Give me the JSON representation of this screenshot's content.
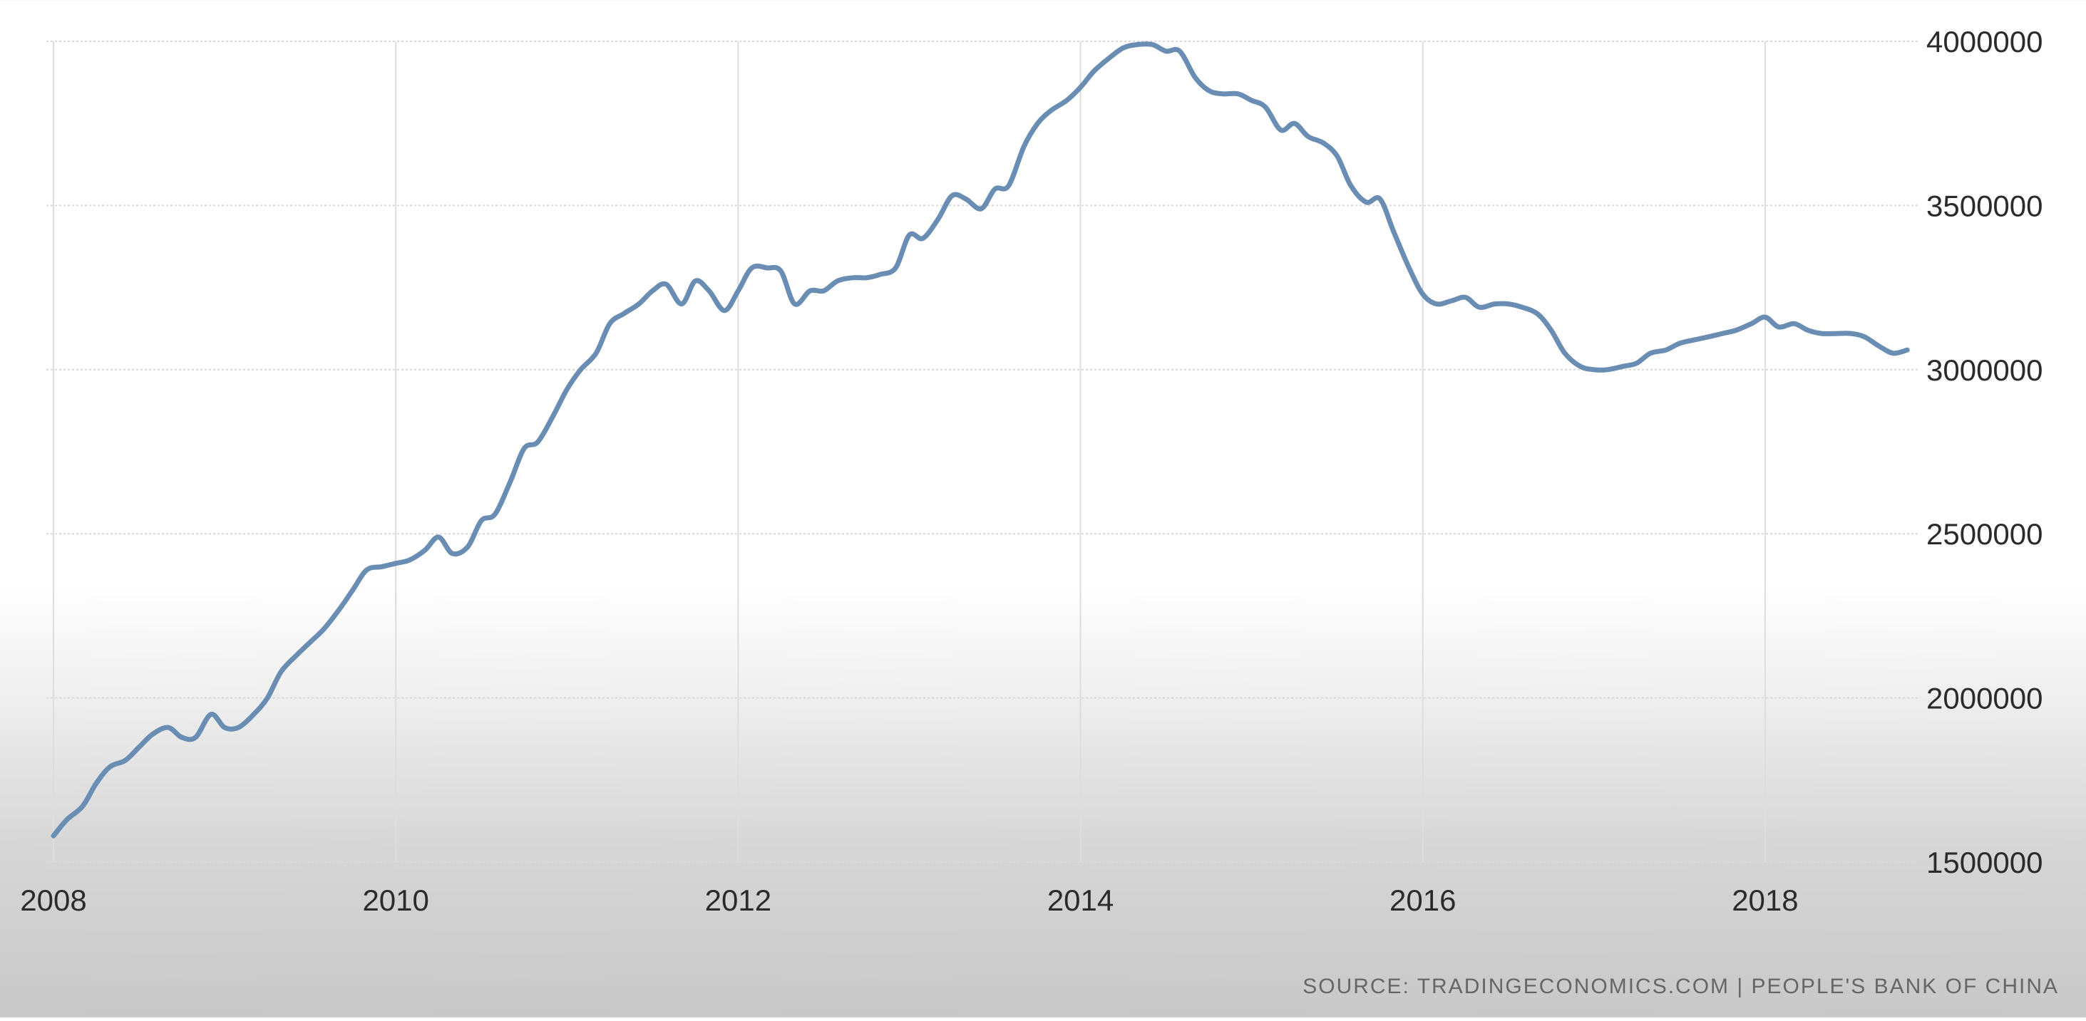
{
  "chart_data": {
    "type": "line",
    "title": "",
    "xlabel": "",
    "ylabel": "",
    "xlim": [
      2008,
      2018.85
    ],
    "ylim": [
      1500000,
      4000000
    ],
    "grid": true,
    "x_ticks": [
      2008,
      2010,
      2012,
      2014,
      2016,
      2018
    ],
    "x_tick_labels": [
      "2008",
      "2010",
      "2012",
      "2014",
      "2016",
      "2018"
    ],
    "y_ticks": [
      1500000,
      2000000,
      2500000,
      3000000,
      3500000,
      4000000
    ],
    "y_tick_labels": [
      "1500000",
      "2000000",
      "2500000",
      "3000000",
      "3500000",
      "4000000"
    ],
    "series": [
      {
        "color": "#6a8db4",
        "points": [
          [
            2008.0,
            1580000
          ],
          [
            2008.08,
            1630000
          ],
          [
            2008.17,
            1670000
          ],
          [
            2008.25,
            1740000
          ],
          [
            2008.33,
            1790000
          ],
          [
            2008.42,
            1810000
          ],
          [
            2008.5,
            1850000
          ],
          [
            2008.58,
            1890000
          ],
          [
            2008.67,
            1910000
          ],
          [
            2008.75,
            1880000
          ],
          [
            2008.83,
            1880000
          ],
          [
            2008.92,
            1950000
          ],
          [
            2009.0,
            1910000
          ],
          [
            2009.08,
            1910000
          ],
          [
            2009.17,
            1950000
          ],
          [
            2009.25,
            2000000
          ],
          [
            2009.33,
            2080000
          ],
          [
            2009.42,
            2130000
          ],
          [
            2009.5,
            2170000
          ],
          [
            2009.58,
            2210000
          ],
          [
            2009.67,
            2270000
          ],
          [
            2009.75,
            2330000
          ],
          [
            2009.83,
            2390000
          ],
          [
            2009.92,
            2400000
          ],
          [
            2010.0,
            2410000
          ],
          [
            2010.08,
            2420000
          ],
          [
            2010.17,
            2450000
          ],
          [
            2010.25,
            2490000
          ],
          [
            2010.33,
            2440000
          ],
          [
            2010.42,
            2460000
          ],
          [
            2010.5,
            2540000
          ],
          [
            2010.58,
            2560000
          ],
          [
            2010.67,
            2660000
          ],
          [
            2010.75,
            2760000
          ],
          [
            2010.83,
            2780000
          ],
          [
            2010.92,
            2860000
          ],
          [
            2011.0,
            2940000
          ],
          [
            2011.08,
            3000000
          ],
          [
            2011.17,
            3050000
          ],
          [
            2011.25,
            3140000
          ],
          [
            2011.33,
            3170000
          ],
          [
            2011.42,
            3200000
          ],
          [
            2011.5,
            3240000
          ],
          [
            2011.58,
            3260000
          ],
          [
            2011.67,
            3200000
          ],
          [
            2011.75,
            3270000
          ],
          [
            2011.83,
            3240000
          ],
          [
            2011.92,
            3180000
          ],
          [
            2012.0,
            3240000
          ],
          [
            2012.08,
            3310000
          ],
          [
            2012.17,
            3310000
          ],
          [
            2012.25,
            3300000
          ],
          [
            2012.33,
            3200000
          ],
          [
            2012.42,
            3240000
          ],
          [
            2012.5,
            3240000
          ],
          [
            2012.58,
            3270000
          ],
          [
            2012.67,
            3280000
          ],
          [
            2012.75,
            3280000
          ],
          [
            2012.83,
            3290000
          ],
          [
            2012.92,
            3310000
          ],
          [
            2013.0,
            3410000
          ],
          [
            2013.08,
            3400000
          ],
          [
            2013.17,
            3460000
          ],
          [
            2013.25,
            3530000
          ],
          [
            2013.33,
            3520000
          ],
          [
            2013.42,
            3490000
          ],
          [
            2013.5,
            3550000
          ],
          [
            2013.58,
            3560000
          ],
          [
            2013.67,
            3680000
          ],
          [
            2013.75,
            3750000
          ],
          [
            2013.83,
            3790000
          ],
          [
            2013.92,
            3820000
          ],
          [
            2014.0,
            3860000
          ],
          [
            2014.08,
            3910000
          ],
          [
            2014.17,
            3950000
          ],
          [
            2014.25,
            3980000
          ],
          [
            2014.33,
            3990000
          ],
          [
            2014.42,
            3990000
          ],
          [
            2014.5,
            3970000
          ],
          [
            2014.58,
            3970000
          ],
          [
            2014.67,
            3890000
          ],
          [
            2014.75,
            3850000
          ],
          [
            2014.83,
            3840000
          ],
          [
            2014.92,
            3840000
          ],
          [
            2015.0,
            3820000
          ],
          [
            2015.08,
            3800000
          ],
          [
            2015.17,
            3730000
          ],
          [
            2015.25,
            3750000
          ],
          [
            2015.33,
            3710000
          ],
          [
            2015.42,
            3690000
          ],
          [
            2015.5,
            3650000
          ],
          [
            2015.58,
            3560000
          ],
          [
            2015.67,
            3510000
          ],
          [
            2015.75,
            3520000
          ],
          [
            2015.83,
            3420000
          ],
          [
            2015.92,
            3310000
          ],
          [
            2016.0,
            3230000
          ],
          [
            2016.08,
            3200000
          ],
          [
            2016.17,
            3210000
          ],
          [
            2016.25,
            3220000
          ],
          [
            2016.33,
            3190000
          ],
          [
            2016.42,
            3200000
          ],
          [
            2016.5,
            3200000
          ],
          [
            2016.58,
            3190000
          ],
          [
            2016.67,
            3170000
          ],
          [
            2016.75,
            3120000
          ],
          [
            2016.83,
            3050000
          ],
          [
            2016.92,
            3010000
          ],
          [
            2017.0,
            3000000
          ],
          [
            2017.08,
            3000000
          ],
          [
            2017.17,
            3010000
          ],
          [
            2017.25,
            3020000
          ],
          [
            2017.33,
            3050000
          ],
          [
            2017.42,
            3060000
          ],
          [
            2017.5,
            3080000
          ],
          [
            2017.58,
            3090000
          ],
          [
            2017.67,
            3100000
          ],
          [
            2017.75,
            3110000
          ],
          [
            2017.83,
            3120000
          ],
          [
            2017.92,
            3140000
          ],
          [
            2018.0,
            3160000
          ],
          [
            2018.08,
            3130000
          ],
          [
            2018.17,
            3140000
          ],
          [
            2018.25,
            3120000
          ],
          [
            2018.33,
            3110000
          ],
          [
            2018.42,
            3110000
          ],
          [
            2018.5,
            3110000
          ],
          [
            2018.58,
            3100000
          ],
          [
            2018.67,
            3070000
          ],
          [
            2018.75,
            3050000
          ],
          [
            2018.83,
            3060000
          ]
        ]
      }
    ],
    "annotations": [
      "SOURCE:  TRADINGECONOMICS.COM  |  PEOPLE'S BANK OF CHINA"
    ]
  }
}
